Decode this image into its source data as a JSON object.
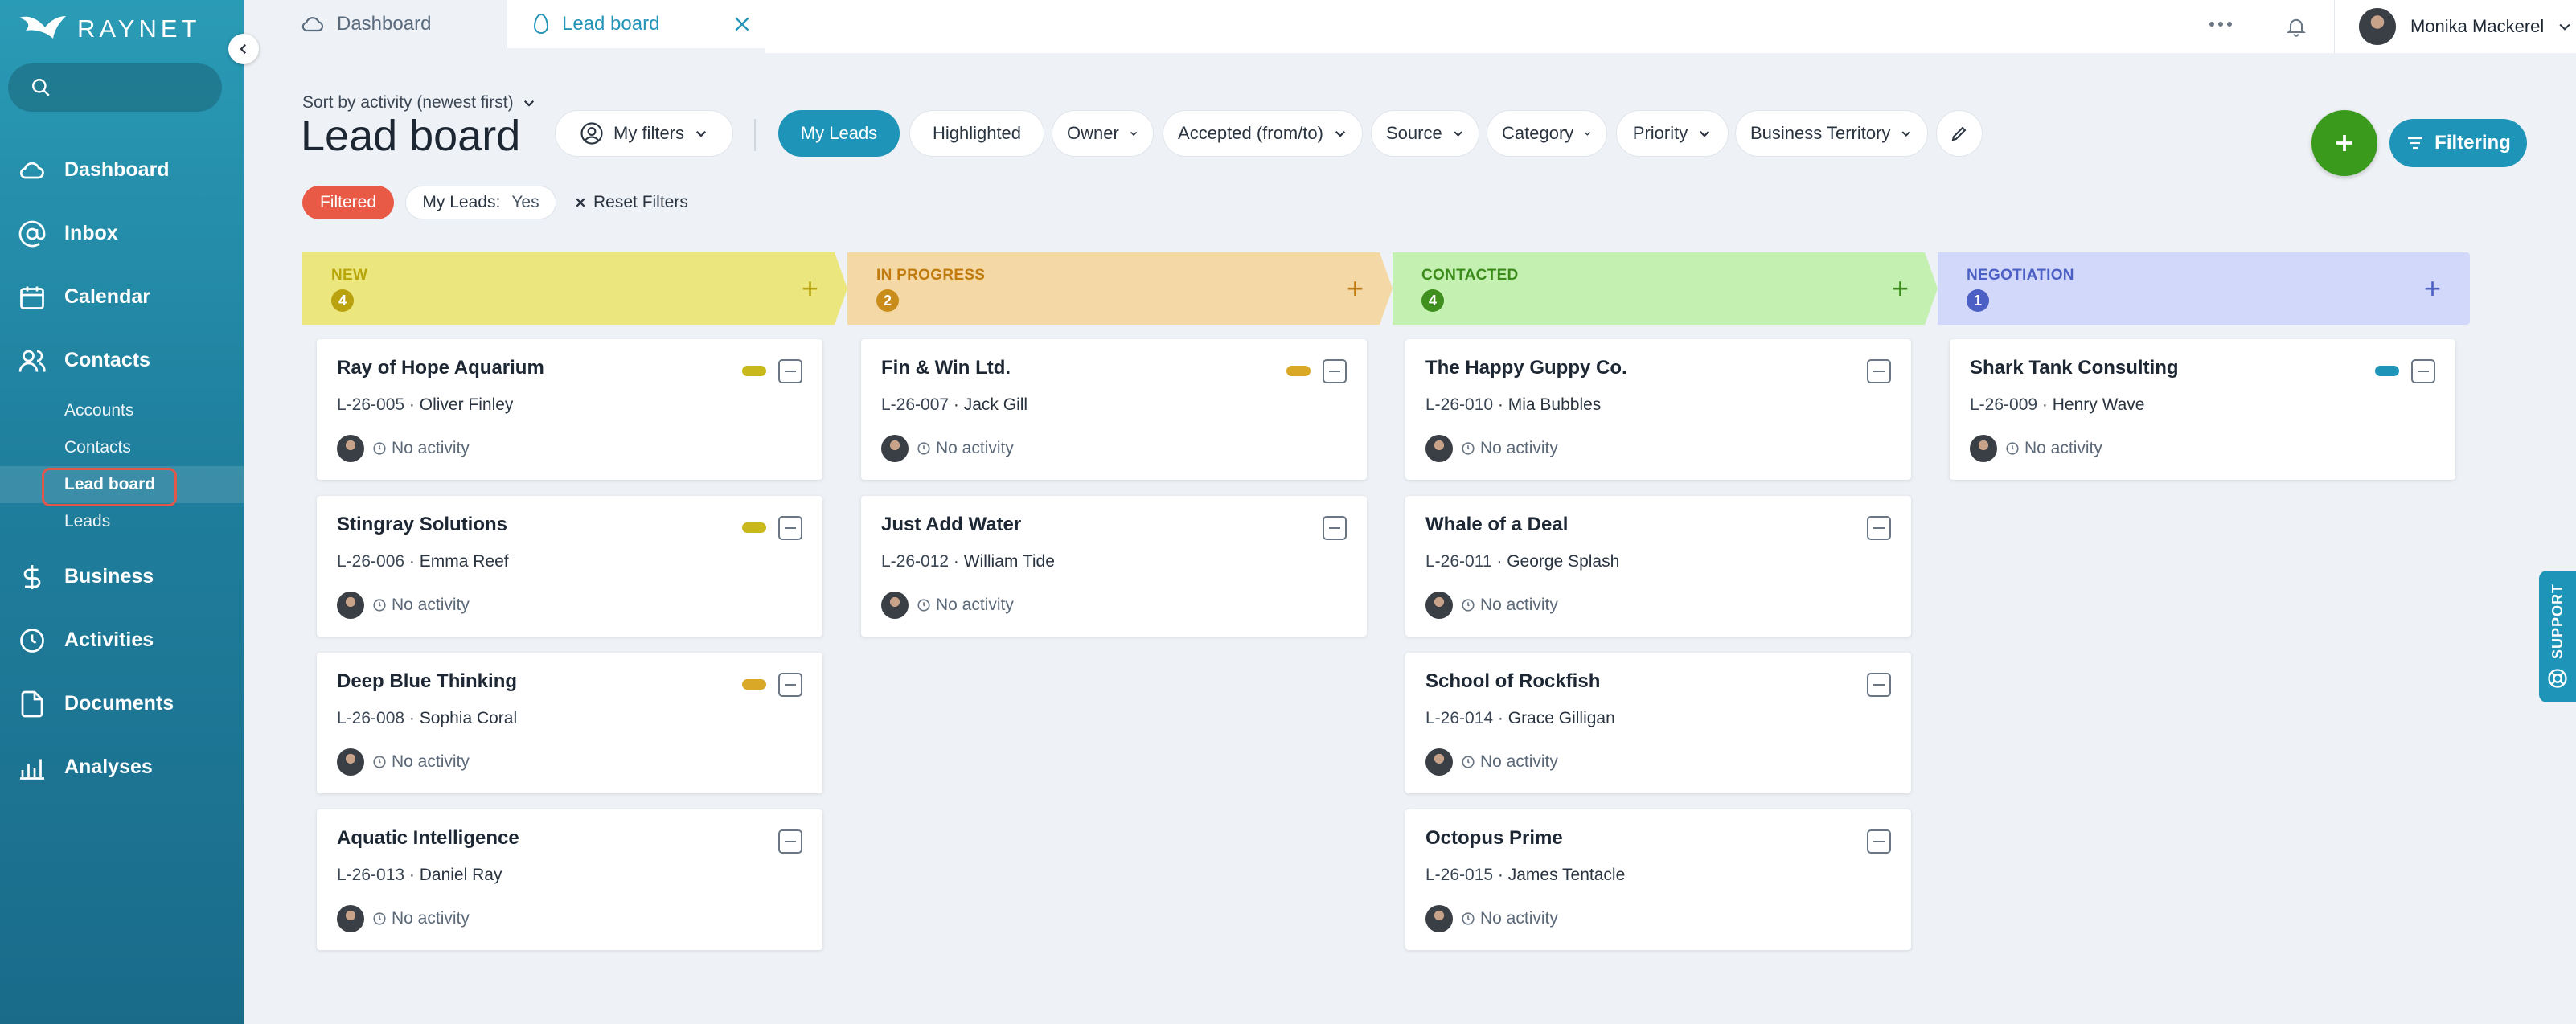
{
  "app": {
    "brand": "RAYNET"
  },
  "sidebar": {
    "search_placeholder": "",
    "items": [
      {
        "label": "Dashboard",
        "icon": "cloud-icon"
      },
      {
        "label": "Inbox",
        "icon": "at-icon"
      },
      {
        "label": "Calendar",
        "icon": "calendar-icon"
      },
      {
        "label": "Contacts",
        "icon": "contacts-icon"
      },
      {
        "label": "Business",
        "icon": "dollar-icon"
      },
      {
        "label": "Activities",
        "icon": "clock-icon"
      },
      {
        "label": "Documents",
        "icon": "document-icon"
      },
      {
        "label": "Analyses",
        "icon": "bar-chart-icon"
      }
    ],
    "contacts_sub": [
      "Accounts",
      "Contacts",
      "Lead board",
      "Leads"
    ],
    "active_sub": "Lead board"
  },
  "tabs": [
    {
      "label": "Dashboard",
      "active": false
    },
    {
      "label": "Lead board",
      "active": true
    }
  ],
  "user": {
    "name": "Monika Mackerel"
  },
  "header": {
    "sort_label": "Sort by activity (newest first)",
    "title": "Lead board",
    "my_filters": "My filters",
    "filter_pills": [
      "My Leads",
      "Highlighted",
      "Owner",
      "Accepted (from/to)",
      "Source",
      "Category",
      "Priority",
      "Business Territory"
    ],
    "filtering_button": "Filtering"
  },
  "active_filters": {
    "filtered_chip": "Filtered",
    "my_leads_label": "My Leads:",
    "my_leads_value": "Yes",
    "reset_label": "Reset Filters"
  },
  "columns": [
    {
      "name": "NEW",
      "count": "4",
      "color": "#ece67f",
      "text_color": "#b8a50a",
      "badge_color": "#b9a20e",
      "cards": [
        {
          "title": "Ray of Hope Aquarium",
          "code": "L-26-005",
          "owner": "Oliver Finley",
          "activity": "No activity",
          "priority_color": "#c8b81c"
        },
        {
          "title": "Stingray Solutions",
          "code": "L-26-006",
          "owner": "Emma Reef",
          "activity": "No activity",
          "priority_color": "#c8b81c"
        },
        {
          "title": "Deep Blue Thinking",
          "code": "L-26-008",
          "owner": "Sophia Coral",
          "activity": "No activity",
          "priority_color": "#d9a826"
        },
        {
          "title": "Aquatic Intelligence",
          "code": "L-26-013",
          "owner": "Daniel Ray",
          "activity": "No activity",
          "priority_color": ""
        }
      ]
    },
    {
      "name": "IN PROGRESS",
      "count": "2",
      "color": "#f4d9a6",
      "text_color": "#c07a0e",
      "badge_color": "#c98c1a",
      "cards": [
        {
          "title": "Fin & Win Ltd.",
          "code": "L-26-007",
          "owner": "Jack Gill",
          "activity": "No activity",
          "priority_color": "#d9a826"
        },
        {
          "title": "Just Add Water",
          "code": "L-26-012",
          "owner": "William Tide",
          "activity": "No activity",
          "priority_color": ""
        }
      ]
    },
    {
      "name": "CONTACTED",
      "count": "4",
      "color": "#c4f0b2",
      "text_color": "#3b8a1a",
      "badge_color": "#3e8f1e",
      "cards": [
        {
          "title": "The Happy Guppy Co.",
          "code": "L-26-010",
          "owner": "Mia Bubbles",
          "activity": "No activity",
          "priority_color": ""
        },
        {
          "title": "Whale of a Deal",
          "code": "L-26-011",
          "owner": "George Splash",
          "activity": "No activity",
          "priority_color": ""
        },
        {
          "title": "School of Rockfish",
          "code": "L-26-014",
          "owner": "Grace Gilligan",
          "activity": "No activity",
          "priority_color": ""
        },
        {
          "title": "Octopus Prime",
          "code": "L-26-015",
          "owner": "James Tentacle",
          "activity": "No activity",
          "priority_color": ""
        }
      ]
    },
    {
      "name": "NEGOTIATION",
      "count": "1",
      "color": "#d2d8fa",
      "text_color": "#4b5fc4",
      "badge_color": "#4b5fc4",
      "cards": [
        {
          "title": "Shark Tank Consulting",
          "code": "L-26-009",
          "owner": "Henry Wave",
          "activity": "No activity",
          "priority_color": "#1e95b8"
        }
      ]
    }
  ],
  "support_label": "SUPPORT",
  "colors": {
    "accent": "#1e95b8",
    "add": "#3a9a1b",
    "filtered": "#e85a45"
  }
}
